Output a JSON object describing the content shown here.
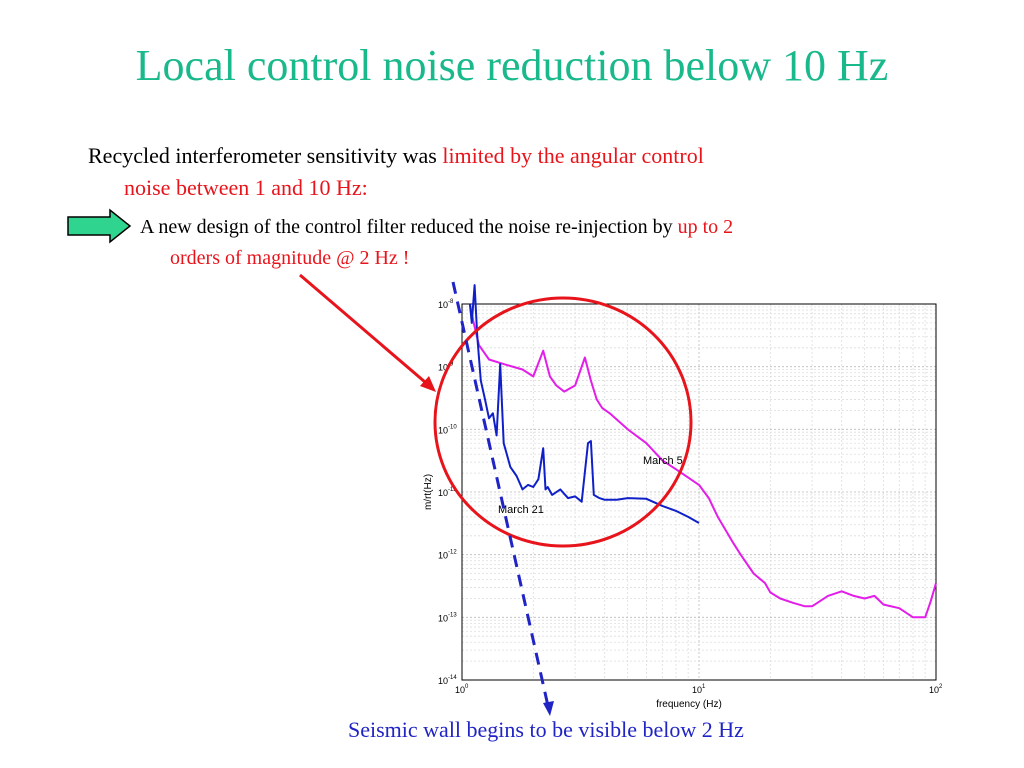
{
  "slide": {
    "title": "Local control noise reduction below 10 Hz",
    "bullet1_text": "Recycled interferometer sensitivity was ",
    "bullet1_red_a": "limited by the angular control",
    "bullet1_red_b": "noise between 1 and 10 Hz:",
    "bullet2_text": "A new design of the control filter reduced the noise re-injection by ",
    "bullet2_red_a": "up to 2",
    "bullet2_red_b": "orders of magnitude @ 2 Hz !",
    "footer": "Seismic wall begins to be visible below 2 Hz"
  },
  "colors": {
    "title": "#1ab98c",
    "highlight": "#e8141b",
    "footer": "#2024c4",
    "series_march5": "#e21ee8",
    "series_march21": "#1020c8",
    "arrow_fill": "#2fd48f"
  },
  "chart_data": {
    "type": "line",
    "xscale": "log",
    "yscale": "log",
    "xlim": [
      1,
      100
    ],
    "ylim": [
      1e-14,
      1e-08
    ],
    "xlabel": "frequency (Hz)",
    "ylabel": "m/rt(Hz)",
    "x_ticks": [
      {
        "base": "10",
        "exp": "0"
      },
      {
        "base": "10",
        "exp": "1"
      },
      {
        "base": "10",
        "exp": "2"
      }
    ],
    "y_ticks": [
      {
        "base": "10",
        "exp": "-8"
      },
      {
        "base": "10",
        "exp": "-9"
      },
      {
        "base": "10",
        "exp": "-10"
      },
      {
        "base": "10",
        "exp": "-11"
      },
      {
        "base": "10",
        "exp": "-12"
      },
      {
        "base": "10",
        "exp": "-13"
      },
      {
        "base": "10",
        "exp": "-14"
      }
    ],
    "grid": true,
    "series": [
      {
        "name": "March 5",
        "x": [
          1.08,
          1.12,
          1.18,
          1.3,
          1.5,
          1.8,
          2.0,
          2.2,
          2.35,
          2.5,
          2.7,
          3.0,
          3.3,
          3.5,
          3.7,
          3.9,
          4.2,
          5.0,
          6.0,
          7.0,
          8.0,
          9.0,
          10,
          11,
          12,
          13,
          14,
          15,
          17,
          19,
          20,
          22,
          25,
          28,
          30,
          35,
          40,
          45,
          50,
          55,
          60,
          70,
          80,
          90,
          95,
          100
        ],
        "y": [
          1e-08,
          5e-09,
          2.2e-09,
          1.3e-09,
          1.1e-09,
          9e-10,
          7e-10,
          1.8e-09,
          7e-10,
          5e-10,
          4e-10,
          5e-10,
          1.4e-09,
          6e-10,
          3e-10,
          2.2e-10,
          1.8e-10,
          1e-10,
          6e-11,
          3.2e-11,
          2.3e-11,
          1.7e-11,
          1.3e-11,
          8e-12,
          4e-12,
          2.4e-12,
          1.5e-12,
          1e-12,
          5e-13,
          3.5e-13,
          2.5e-13,
          2e-13,
          1.7e-13,
          1.5e-13,
          1.5e-13,
          2.2e-13,
          2.6e-13,
          2.2e-13,
          2e-13,
          2.2e-13,
          1.6e-13,
          1.4e-13,
          1e-13,
          1e-13,
          1.8e-13,
          3.5e-13
        ]
      },
      {
        "name": "March 21",
        "x": [
          1.08,
          1.1,
          1.13,
          1.16,
          1.2,
          1.25,
          1.3,
          1.35,
          1.4,
          1.45,
          1.5,
          1.6,
          1.7,
          1.8,
          1.9,
          2.0,
          2.1,
          2.2,
          2.25,
          2.3,
          2.4,
          2.6,
          2.8,
          3.0,
          3.2,
          3.4,
          3.5,
          3.6,
          3.8,
          4.0,
          4.5,
          5.0,
          6.0,
          7.0,
          8.0,
          9.0,
          10
        ],
        "y": [
          1e-08,
          5e-09,
          2e-08,
          3e-09,
          6e-10,
          3e-10,
          1.5e-10,
          1.8e-10,
          8e-11,
          1.1e-09,
          6e-11,
          2.5e-11,
          1.8e-11,
          1.1e-11,
          1.3e-11,
          1.2e-11,
          1.6e-11,
          5e-11,
          1.1e-11,
          1.2e-11,
          9e-12,
          1.1e-11,
          8e-12,
          8.5e-12,
          7e-12,
          6e-11,
          6.5e-11,
          9e-12,
          8e-12,
          7.5e-12,
          7.5e-12,
          8e-12,
          7.8e-12,
          6e-12,
          5e-12,
          4e-12,
          3.2e-12
        ]
      }
    ]
  }
}
